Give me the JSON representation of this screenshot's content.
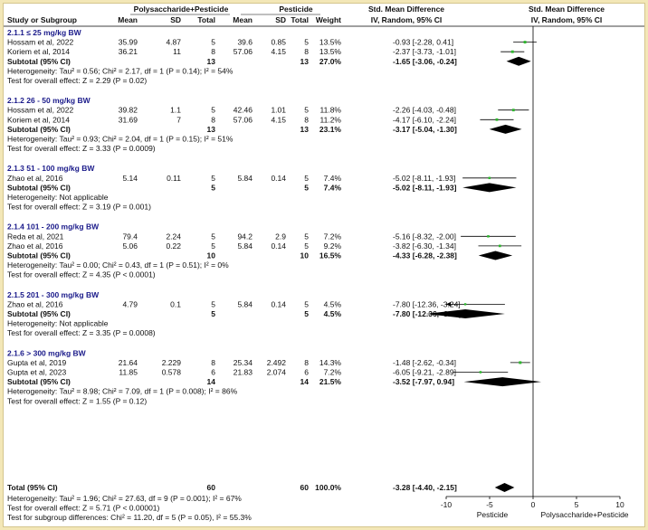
{
  "chart_data": {
    "type": "forest",
    "headers": {
      "group1": "Polysaccharide+Pesticide",
      "group2": "Pesticide",
      "study": "Study or Subgroup",
      "mean": "Mean",
      "sd": "SD",
      "total": "Total",
      "weight": "Weight",
      "smd": "Std. Mean Difference",
      "method": "IV, Random, 95% CI",
      "plot_title": "Std. Mean Difference",
      "plot_method": "IV, Random, 95% CI"
    },
    "axis": {
      "min": -10,
      "max": 10,
      "ticks": [
        -10,
        -5,
        0,
        5,
        10
      ],
      "tick_labels": [
        "-10",
        "-5",
        "0",
        "5",
        "10"
      ],
      "left_label": "Pesticide",
      "right_label": "Polysaccharide+Pesticide"
    },
    "subgroups": [
      {
        "title": "2.1.1 ≤ 25 mg/kg BW",
        "studies": [
          {
            "name": "Hossam et al, 2022",
            "m1": "35.99",
            "sd1": "4.87",
            "n1": "5",
            "m2": "39.6",
            "sd2": "0.85",
            "n2": "5",
            "weight": "13.5%",
            "ci_text": "-0.93 [-2.28, 0.41]",
            "est": -0.93,
            "lo": -2.28,
            "hi": 0.41
          },
          {
            "name": "Koriem et al, 2014",
            "m1": "36.21",
            "sd1": "11",
            "n1": "8",
            "m2": "57.06",
            "sd2": "4.15",
            "n2": "8",
            "weight": "13.5%",
            "ci_text": "-2.37 [-3.73, -1.01]",
            "est": -2.37,
            "lo": -3.73,
            "hi": -1.01
          }
        ],
        "subtotal": {
          "label": "Subtotal (95% CI)",
          "n1": "13",
          "n2": "13",
          "weight": "27.0%",
          "ci_text": "-1.65 [-3.06, -0.24]",
          "est": -1.65,
          "lo": -3.06,
          "hi": -0.24
        },
        "heterogeneity": "Heterogeneity: Tau² = 0.56; Chi² = 2.17, df = 1 (P = 0.14); I² = 54%",
        "overall": "Test for overall effect: Z = 2.29 (P = 0.02)"
      },
      {
        "title": "2.1.2 26 - 50 mg/kg BW",
        "studies": [
          {
            "name": "Hossam et al, 2022",
            "m1": "39.82",
            "sd1": "1.1",
            "n1": "5",
            "m2": "42.46",
            "sd2": "1.01",
            "n2": "5",
            "weight": "11.8%",
            "ci_text": "-2.26 [-4.03, -0.48]",
            "est": -2.26,
            "lo": -4.03,
            "hi": -0.48
          },
          {
            "name": "Koriem et al, 2014",
            "m1": "31.69",
            "sd1": "7",
            "n1": "8",
            "m2": "57.06",
            "sd2": "4.15",
            "n2": "8",
            "weight": "11.2%",
            "ci_text": "-4.17 [-6.10, -2.24]",
            "est": -4.17,
            "lo": -6.1,
            "hi": -2.24
          }
        ],
        "subtotal": {
          "label": "Subtotal (95% CI)",
          "n1": "13",
          "n2": "13",
          "weight": "23.1%",
          "ci_text": "-3.17 [-5.04, -1.30]",
          "est": -3.17,
          "lo": -5.04,
          "hi": -1.3
        },
        "heterogeneity": "Heterogeneity: Tau² = 0.93; Chi² = 2.04, df = 1 (P = 0.15); I² = 51%",
        "overall": "Test for overall effect: Z = 3.33 (P = 0.0009)"
      },
      {
        "title": "2.1.3 51 - 100 mg/kg BW",
        "studies": [
          {
            "name": "Zhao et al, 2016",
            "m1": "5.14",
            "sd1": "0.11",
            "n1": "5",
            "m2": "5.84",
            "sd2": "0.14",
            "n2": "5",
            "weight": "7.4%",
            "ci_text": "-5.02 [-8.11, -1.93]",
            "est": -5.02,
            "lo": -8.11,
            "hi": -1.93
          }
        ],
        "subtotal": {
          "label": "Subtotal (95% CI)",
          "n1": "5",
          "n2": "5",
          "weight": "7.4%",
          "ci_text": "-5.02 [-8.11, -1.93]",
          "est": -5.02,
          "lo": -8.11,
          "hi": -1.93
        },
        "heterogeneity": "Heterogeneity: Not applicable",
        "overall": "Test for overall effect: Z = 3.19 (P = 0.001)"
      },
      {
        "title": "2.1.4 101 - 200 mg/kg BW",
        "studies": [
          {
            "name": "Reda et al, 2021",
            "m1": "79.4",
            "sd1": "2.24",
            "n1": "5",
            "m2": "94.2",
            "sd2": "2.9",
            "n2": "5",
            "weight": "7.2%",
            "ci_text": "-5.16 [-8.32, -2.00]",
            "est": -5.16,
            "lo": -8.32,
            "hi": -2.0
          },
          {
            "name": "Zhao et al, 2016",
            "m1": "5.06",
            "sd1": "0.22",
            "n1": "5",
            "m2": "5.84",
            "sd2": "0.14",
            "n2": "5",
            "weight": "9.2%",
            "ci_text": "-3.82 [-6.30, -1.34]",
            "est": -3.82,
            "lo": -6.3,
            "hi": -1.34
          }
        ],
        "subtotal": {
          "label": "Subtotal (95% CI)",
          "n1": "10",
          "n2": "10",
          "weight": "16.5%",
          "ci_text": "-4.33 [-6.28, -2.38]",
          "est": -4.33,
          "lo": -6.28,
          "hi": -2.38
        },
        "heterogeneity": "Heterogeneity: Tau² = 0.00; Chi² = 0.43, df = 1 (P = 0.51); I² = 0%",
        "overall": "Test for overall effect: Z = 4.35 (P < 0.0001)"
      },
      {
        "title": "2.1.5 201 - 300 mg/kg BW",
        "studies": [
          {
            "name": "Zhao et al, 2016",
            "m1": "4.79",
            "sd1": "0.1",
            "n1": "5",
            "m2": "5.84",
            "sd2": "0.14",
            "n2": "5",
            "weight": "4.5%",
            "ci_text": "-7.80 [-12.36, -3.24]",
            "est": -7.8,
            "lo": -12.36,
            "hi": -3.24
          }
        ],
        "subtotal": {
          "label": "Subtotal (95% CI)",
          "n1": "5",
          "n2": "5",
          "weight": "4.5%",
          "ci_text": "-7.80 [-12.36, -3.24]",
          "est": -7.8,
          "lo": -12.36,
          "hi": -3.24
        },
        "heterogeneity": "Heterogeneity: Not applicable",
        "overall": "Test for overall effect: Z = 3.35 (P = 0.0008)"
      },
      {
        "title": "2.1.6 > 300 mg/kg BW",
        "studies": [
          {
            "name": "Gupta et al, 2019",
            "m1": "21.64",
            "sd1": "2.229",
            "n1": "8",
            "m2": "25.34",
            "sd2": "2.492",
            "n2": "8",
            "weight": "14.3%",
            "ci_text": "-1.48 [-2.62, -0.34]",
            "est": -1.48,
            "lo": -2.62,
            "hi": -0.34
          },
          {
            "name": "Gupta et al, 2023",
            "m1": "11.85",
            "sd1": "0.578",
            "n1": "6",
            "m2": "21.83",
            "sd2": "2.074",
            "n2": "6",
            "weight": "7.2%",
            "ci_text": "-6.05 [-9.21, -2.89]",
            "est": -6.05,
            "lo": -9.21,
            "hi": -2.89
          }
        ],
        "subtotal": {
          "label": "Subtotal (95% CI)",
          "n1": "14",
          "n2": "14",
          "weight": "21.5%",
          "ci_text": "-3.52 [-7.97, 0.94]",
          "est": -3.52,
          "lo": -7.97,
          "hi": 0.94
        },
        "heterogeneity": "Heterogeneity: Tau² = 8.98; Chi² = 7.09, df = 1 (P = 0.008); I² = 86%",
        "overall": "Test for overall effect: Z = 1.55 (P = 0.12)"
      }
    ],
    "total": {
      "label": "Total (95% CI)",
      "n1": "60",
      "n2": "60",
      "weight": "100.0%",
      "ci_text": "-3.28 [-4.40, -2.15]",
      "est": -3.28,
      "lo": -4.4,
      "hi": -2.15,
      "heterogeneity": "Heterogeneity: Tau² = 1.96; Chi² = 27.63, df = 9 (P = 0.001); I² = 67%",
      "overall": "Test for overall effect: Z = 5.71 (P < 0.00001)",
      "subgroup_diff": "Test for subgroup differences: Chi² = 11.20, df = 5 (P = 0.05), I² = 55.3%"
    },
    "colors": {
      "marker": "#2db82d",
      "line": "#000000",
      "subgroup_title": "#1a1a8a"
    }
  }
}
